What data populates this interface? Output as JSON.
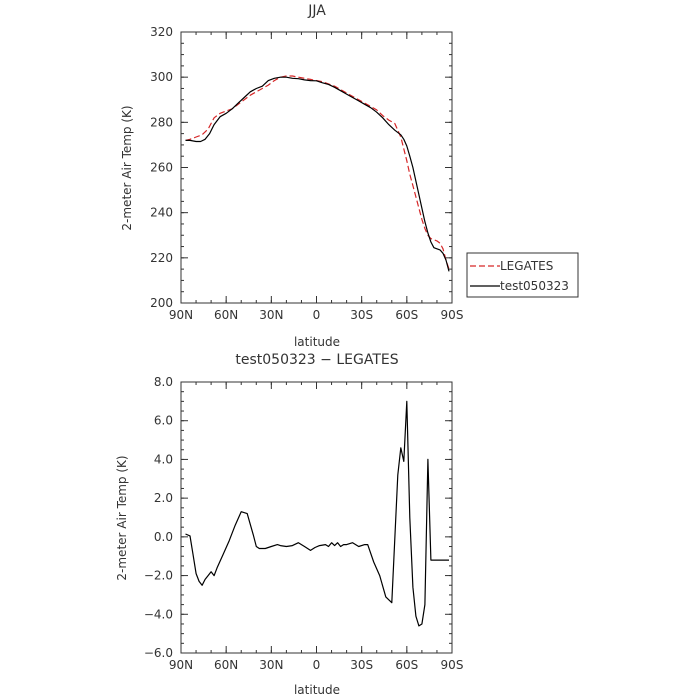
{
  "chart_data": [
    {
      "type": "line",
      "title": "JJA",
      "xlabel": "latitude",
      "ylabel": "2-meter Air Temp (K)",
      "xlim": [
        -90,
        90
      ],
      "ylim": [
        200,
        320
      ],
      "xticks": [
        {
          "value": -90,
          "label": "90N"
        },
        {
          "value": -60,
          "label": "60N"
        },
        {
          "value": -30,
          "label": "30N"
        },
        {
          "value": 0,
          "label": "0"
        },
        {
          "value": 30,
          "label": "30S"
        },
        {
          "value": 60,
          "label": "60S"
        },
        {
          "value": 90,
          "label": "90S"
        }
      ],
      "yticks": [
        {
          "value": 200,
          "label": "200"
        },
        {
          "value": 220,
          "label": "220"
        },
        {
          "value": 240,
          "label": "240"
        },
        {
          "value": 260,
          "label": "260"
        },
        {
          "value": 280,
          "label": "280"
        },
        {
          "value": 300,
          "label": "300"
        },
        {
          "value": 320,
          "label": "320"
        }
      ],
      "legend_position": "right",
      "series": [
        {
          "name": "LEGATES",
          "color": "#d62728",
          "dash": "dashed",
          "x": [
            -87,
            -84,
            -80,
            -76,
            -72,
            -68,
            -64,
            -60,
            -56,
            -52,
            -48,
            -44,
            -40,
            -36,
            -32,
            -28,
            -24,
            -20,
            -16,
            -12,
            -8,
            -4,
            0,
            4,
            8,
            12,
            16,
            20,
            24,
            28,
            32,
            36,
            40,
            44,
            48,
            52,
            56,
            60,
            62,
            64,
            66,
            68,
            70,
            72,
            74,
            76,
            78,
            80,
            82,
            84,
            86,
            88
          ],
          "y": [
            272,
            272.5,
            273.5,
            274.5,
            277,
            282,
            284,
            285,
            286,
            288,
            290,
            292,
            293.5,
            295,
            296.5,
            298.5,
            300,
            300.5,
            300.5,
            300,
            299.5,
            299,
            298.5,
            298,
            297,
            296,
            294.5,
            293,
            291.5,
            290,
            288.5,
            287,
            285.5,
            283,
            281,
            279.5,
            273.5,
            263,
            257,
            252,
            247,
            242,
            237,
            233,
            230,
            228.5,
            228,
            227.5,
            226.5,
            224,
            219,
            215
          ]
        },
        {
          "name": "test050323",
          "color": "#000000",
          "dash": "solid",
          "x": [
            -87,
            -84,
            -80,
            -77,
            -74,
            -71,
            -68,
            -64,
            -60,
            -56,
            -52,
            -48,
            -44,
            -40,
            -36,
            -32,
            -28,
            -24,
            -20,
            -16,
            -12,
            -8,
            -4,
            0,
            4,
            8,
            12,
            16,
            20,
            24,
            28,
            32,
            36,
            40,
            44,
            48,
            52,
            56,
            58,
            60,
            62,
            64,
            66,
            68,
            70,
            72,
            74,
            76,
            78,
            80,
            82,
            84,
            86,
            88
          ],
          "y": [
            272,
            272,
            271.5,
            271.5,
            272.5,
            275,
            279,
            282.5,
            284,
            286,
            288.5,
            291,
            293.5,
            295,
            296,
            298.5,
            299.5,
            300,
            300,
            299.5,
            299.3,
            298.8,
            298.5,
            298.4,
            297.5,
            296.8,
            295.5,
            294,
            292.5,
            291,
            289.5,
            288,
            286.5,
            284.5,
            282,
            279,
            276.5,
            274.5,
            272.5,
            269.5,
            265,
            260,
            254,
            248,
            242,
            236,
            231,
            227,
            224.5,
            224,
            223.5,
            222,
            219,
            214
          ]
        }
      ]
    },
    {
      "type": "line",
      "title": "test050323 − LEGATES",
      "xlabel": "latitude",
      "ylabel": "2-meter Air Temp (K)",
      "xlim": [
        -90,
        90
      ],
      "ylim": [
        -6,
        8
      ],
      "xticks": [
        {
          "value": -90,
          "label": "90N"
        },
        {
          "value": -60,
          "label": "60N"
        },
        {
          "value": -30,
          "label": "30N"
        },
        {
          "value": 0,
          "label": "0"
        },
        {
          "value": 30,
          "label": "30S"
        },
        {
          "value": 60,
          "label": "60S"
        },
        {
          "value": 90,
          "label": "90S"
        }
      ],
      "yticks": [
        {
          "value": -6,
          "label": "−6.0"
        },
        {
          "value": -4,
          "label": "−4.0"
        },
        {
          "value": -2,
          "label": "−2.0"
        },
        {
          "value": 0,
          "label": "0.0"
        },
        {
          "value": 2,
          "label": "2.0"
        },
        {
          "value": 4,
          "label": "4.0"
        },
        {
          "value": 6,
          "label": "6.0"
        },
        {
          "value": 8,
          "label": "8.0"
        }
      ],
      "series": [
        {
          "color": "#000000",
          "dash": "solid",
          "x": [
            -87,
            -84,
            -82,
            -80,
            -78,
            -76,
            -74,
            -72,
            -70,
            -68,
            -66,
            -62,
            -58,
            -54,
            -50,
            -46,
            -42,
            -40,
            -38,
            -34,
            -30,
            -26,
            -24,
            -20,
            -16,
            -12,
            -8,
            -4,
            -1,
            2,
            6,
            8,
            10,
            12,
            14,
            16,
            18,
            20,
            24,
            28,
            32,
            34,
            38,
            42,
            46,
            50,
            54,
            56,
            58,
            60,
            62,
            64,
            66,
            68,
            70,
            72,
            74,
            76,
            78,
            80,
            82,
            84,
            86,
            88
          ],
          "y": [
            0.15,
            0.05,
            -0.9,
            -1.9,
            -2.3,
            -2.5,
            -2.2,
            -2.0,
            -1.8,
            -2.0,
            -1.6,
            -0.9,
            -0.2,
            0.6,
            1.3,
            1.2,
            0.1,
            -0.5,
            -0.6,
            -0.6,
            -0.5,
            -0.4,
            -0.45,
            -0.5,
            -0.45,
            -0.3,
            -0.5,
            -0.7,
            -0.55,
            -0.45,
            -0.4,
            -0.5,
            -0.3,
            -0.45,
            -0.3,
            -0.5,
            -0.4,
            -0.4,
            -0.3,
            -0.5,
            -0.4,
            -0.4,
            -1.3,
            -2.0,
            -3.1,
            -3.4,
            3.2,
            4.6,
            3.9,
            7.0,
            1.0,
            -2.6,
            -4.1,
            -4.6,
            -4.5,
            -3.5,
            4.0,
            -1.2,
            -1.2,
            -1.2,
            -1.2,
            -1.2,
            -1.2,
            -1.2
          ]
        }
      ]
    }
  ]
}
